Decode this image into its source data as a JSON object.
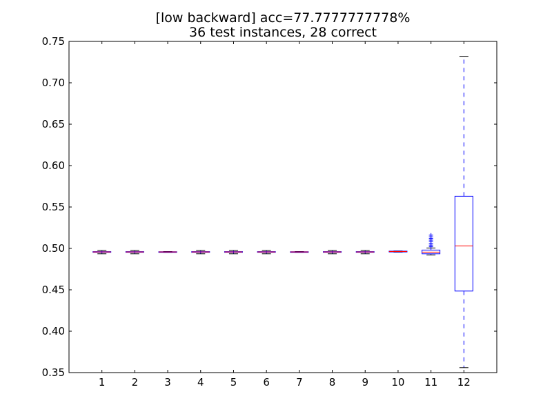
{
  "chart_data": {
    "type": "boxplot",
    "title": "[low backward] acc=77.7777777778%",
    "subtitle": "36 test instances, 28 correct",
    "xlabel": "",
    "ylabel": "",
    "ylim": [
      0.35,
      0.75
    ],
    "ytick_labels": [
      "0.35",
      "0.40",
      "0.45",
      "0.50",
      "0.55",
      "0.60",
      "0.65",
      "0.70",
      "0.75"
    ],
    "categories": [
      "1",
      "2",
      "3",
      "4",
      "5",
      "6",
      "7",
      "8",
      "9",
      "10",
      "11",
      "12"
    ],
    "grid": false,
    "legend": "none",
    "colors": {
      "box": "#0000ff",
      "median": "#ff0000",
      "whisker": "#0000ff",
      "cap": "#000000",
      "flier": "#0000ff",
      "axes": "#000000"
    },
    "boxes": [
      {
        "category": "1",
        "whislo": 0.4935,
        "q1": 0.4953,
        "med": 0.4957,
        "q3": 0.4961,
        "whishi": 0.4975,
        "fliers": []
      },
      {
        "category": "2",
        "whislo": 0.4935,
        "q1": 0.4953,
        "med": 0.4957,
        "q3": 0.4961,
        "whishi": 0.4975,
        "fliers": []
      },
      {
        "category": "3",
        "whislo": 0.4952,
        "q1": 0.4954,
        "med": 0.4957,
        "q3": 0.496,
        "whishi": 0.4962,
        "fliers": []
      },
      {
        "category": "4",
        "whislo": 0.4935,
        "q1": 0.4953,
        "med": 0.4957,
        "q3": 0.4961,
        "whishi": 0.4975,
        "fliers": []
      },
      {
        "category": "5",
        "whislo": 0.4935,
        "q1": 0.4953,
        "med": 0.4957,
        "q3": 0.4961,
        "whishi": 0.4975,
        "fliers": []
      },
      {
        "category": "6",
        "whislo": 0.4935,
        "q1": 0.4953,
        "med": 0.4957,
        "q3": 0.4961,
        "whishi": 0.4975,
        "fliers": []
      },
      {
        "category": "7",
        "whislo": 0.4952,
        "q1": 0.4954,
        "med": 0.4957,
        "q3": 0.496,
        "whishi": 0.4962,
        "fliers": []
      },
      {
        "category": "8",
        "whislo": 0.4935,
        "q1": 0.4953,
        "med": 0.4957,
        "q3": 0.4961,
        "whishi": 0.4975,
        "fliers": []
      },
      {
        "category": "9",
        "whislo": 0.4935,
        "q1": 0.4953,
        "med": 0.4957,
        "q3": 0.4961,
        "whishi": 0.4975,
        "fliers": []
      },
      {
        "category": "10",
        "whislo": 0.4955,
        "q1": 0.4957,
        "med": 0.4962,
        "q3": 0.4967,
        "whishi": 0.4969,
        "fliers": []
      },
      {
        "category": "11",
        "whislo": 0.492,
        "q1": 0.4935,
        "med": 0.4955,
        "q3": 0.498,
        "whishi": 0.5005,
        "fliers": [
          0.502,
          0.504,
          0.506,
          0.508,
          0.51,
          0.512,
          0.514,
          0.516
        ]
      },
      {
        "category": "12",
        "whislo": 0.356,
        "q1": 0.4485,
        "med": 0.503,
        "q3": 0.563,
        "whishi": 0.732,
        "fliers": []
      }
    ]
  }
}
